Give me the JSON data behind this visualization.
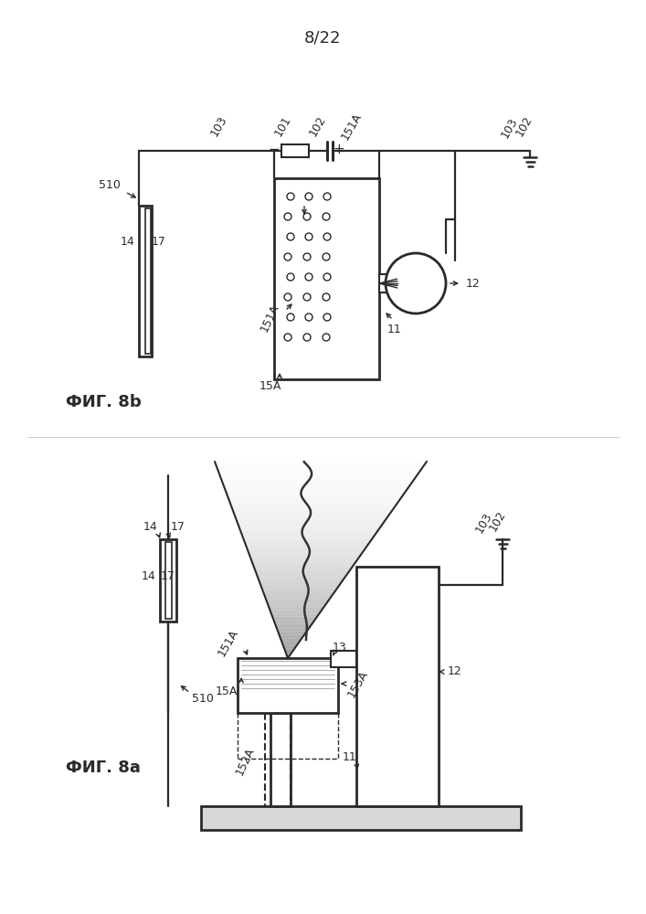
{
  "title": "8/22",
  "fig8b_label": "ФИГ. 8b",
  "fig8a_label": "ФИГ. 8a",
  "bg_color": "#ffffff",
  "line_color": "#2a2a2a"
}
